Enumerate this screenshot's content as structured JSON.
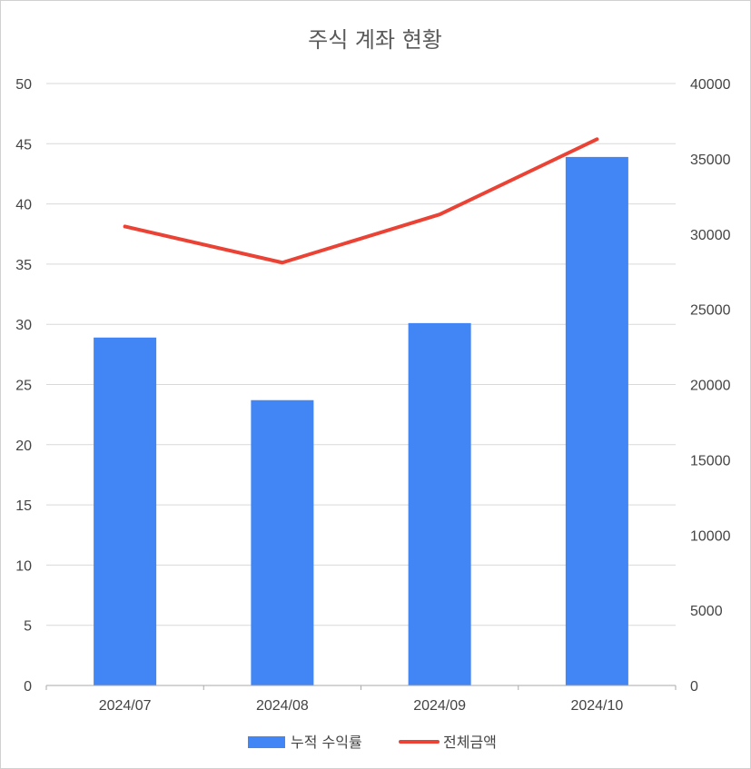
{
  "chart_data": {
    "type": "bar+line",
    "title": "주식 계좌 현황",
    "categories": [
      "2024/07",
      "2024/08",
      "2024/09",
      "2024/10"
    ],
    "series": [
      {
        "name": "누적 수익률",
        "type": "bar",
        "axis": "left",
        "color": "#4285F4",
        "values": [
          28.9,
          23.7,
          30.1,
          43.9
        ]
      },
      {
        "name": "전체금액",
        "type": "line",
        "axis": "right",
        "color": "#EA4335",
        "values": [
          30500,
          28100,
          31300,
          36300
        ]
      }
    ],
    "y_left": {
      "min": 0,
      "max": 50,
      "ticks": [
        "0",
        "5",
        "10",
        "15",
        "20",
        "25",
        "30",
        "35",
        "40",
        "45",
        "50"
      ]
    },
    "y_right": {
      "min": 0,
      "max": 40000,
      "ticks": [
        "0",
        "5000",
        "10000",
        "15000",
        "20000",
        "25000",
        "30000",
        "35000",
        "40000"
      ]
    },
    "grid": true,
    "legend_position": "bottom"
  }
}
